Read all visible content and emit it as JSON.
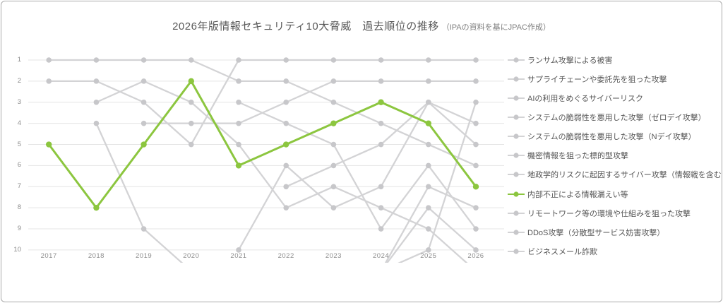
{
  "title": {
    "main": "2026年版情報セキュリティ10大脅威　過去順位の推移",
    "note": "（IPAの資料を基にJPAC作成）"
  },
  "colors": {
    "highlight_green": "#8CC63F",
    "gray_line": "#d3d3d5",
    "gray_dot": "#c7c7ca",
    "gridline": "#e5e5e5",
    "axis_text": "#8c8c8c",
    "legend_text": "#555555",
    "border": "#a9a9a9"
  },
  "chart_data": {
    "type": "line",
    "subtype": "bump-chart-rankings",
    "x_ticks": [
      2017,
      2018,
      2019,
      2020,
      2021,
      2022,
      2023,
      2024,
      2025,
      2026
    ],
    "y_ticks": [
      1,
      2,
      3,
      4,
      5,
      6,
      7,
      8,
      9,
      10
    ],
    "y_axis_inverted": true,
    "ylim": [
      1,
      10
    ],
    "grid": "horizontal-only",
    "legend_position": "right",
    "note": "rank 11 = dropped out of top10 (drawn dipping below axis, no marker)",
    "series": [
      {
        "name": "ランサム攻撃による被害",
        "highlight": false,
        "paths": [
          [
            [
              2017,
              2
            ],
            [
              2018,
              2
            ],
            [
              2019,
              3
            ],
            [
              2020,
              5
            ],
            [
              2021,
              1
            ],
            [
              2022,
              1
            ],
            [
              2023,
              1
            ],
            [
              2024,
              1
            ],
            [
              2025,
              1
            ],
            [
              2026,
              1
            ]
          ]
        ]
      },
      {
        "name": "サプライチェーンや委託先を狙った攻撃",
        "highlight": false,
        "paths": [
          [
            [
              2019,
              4
            ],
            [
              2020,
              4
            ],
            [
              2021,
              4
            ],
            [
              2022,
              3
            ],
            [
              2023,
              2
            ],
            [
              2024,
              2
            ],
            [
              2025,
              2
            ],
            [
              2026,
              2
            ]
          ]
        ]
      },
      {
        "name": "AIの利用をめぐるサイバーリスク",
        "highlight": false,
        "paths": [
          [
            [
              2024,
              11
            ],
            [
              2025,
              10
            ],
            [
              2026,
              3
            ]
          ]
        ]
      },
      {
        "name": "システムの脆弱性を悪用した攻撃（ゼロデイ攻撃）",
        "highlight": false,
        "paths": [
          [
            [
              2022,
              7
            ],
            [
              2023,
              6
            ],
            [
              2024,
              5
            ],
            [
              2025,
              3
            ],
            [
              2026,
              4
            ]
          ]
        ]
      },
      {
        "name": "システムの脆弱性を悪用した攻撃（Nデイ攻撃）",
        "highlight": false,
        "paths": [
          [
            [
              2018,
              4
            ],
            [
              2019,
              9
            ],
            [
              2020,
              11
            ]
          ],
          [
            [
              2021,
              10
            ],
            [
              2022,
              6
            ],
            [
              2023,
              8
            ],
            [
              2024,
              7
            ],
            [
              2025,
              3
            ],
            [
              2026,
              5
            ]
          ]
        ]
      },
      {
        "name": "機密情報を狙った標的型攻撃",
        "highlight": false,
        "paths": [
          [
            [
              2017,
              1
            ],
            [
              2018,
              1
            ],
            [
              2019,
              1
            ],
            [
              2020,
              1
            ],
            [
              2021,
              2
            ],
            [
              2022,
              2
            ],
            [
              2023,
              3
            ],
            [
              2024,
              4
            ],
            [
              2025,
              5
            ],
            [
              2026,
              6
            ]
          ]
        ]
      },
      {
        "name": "地政学的リスクに起因するサイバー攻撃（情報戦を含む）",
        "highlight": false,
        "paths": [
          [
            [
              2024,
              11
            ],
            [
              2025,
              7
            ],
            [
              2026,
              8
            ]
          ]
        ]
      },
      {
        "name": "内部不正による情報漏えい等",
        "highlight": true,
        "paths": [
          [
            [
              2017,
              5
            ],
            [
              2018,
              8
            ],
            [
              2019,
              5
            ],
            [
              2020,
              2
            ],
            [
              2021,
              6
            ],
            [
              2022,
              5
            ],
            [
              2023,
              4
            ],
            [
              2024,
              3
            ],
            [
              2025,
              4
            ],
            [
              2026,
              7
            ]
          ]
        ]
      },
      {
        "name": "リモートワーク等の環境や仕組みを狙った攻撃",
        "highlight": false,
        "paths": [
          [
            [
              2021,
              3
            ],
            [
              2022,
              4
            ],
            [
              2023,
              5
            ],
            [
              2024,
              9
            ],
            [
              2025,
              6
            ],
            [
              2026,
              9
            ]
          ]
        ]
      },
      {
        "name": "DDoS攻撃（分散型サービス妨害攻撃）",
        "highlight": false,
        "paths": [
          [
            [
              2024,
              11
            ],
            [
              2025,
              8
            ],
            [
              2026,
              10
            ]
          ]
        ]
      },
      {
        "name": "ビジネスメール詐欺",
        "highlight": false,
        "paths": [
          [
            [
              2018,
              3
            ],
            [
              2019,
              2
            ],
            [
              2020,
              3
            ],
            [
              2021,
              5
            ],
            [
              2022,
              8
            ],
            [
              2023,
              7
            ],
            [
              2024,
              8
            ],
            [
              2025,
              9
            ],
            [
              2026,
              11
            ]
          ]
        ]
      }
    ]
  }
}
